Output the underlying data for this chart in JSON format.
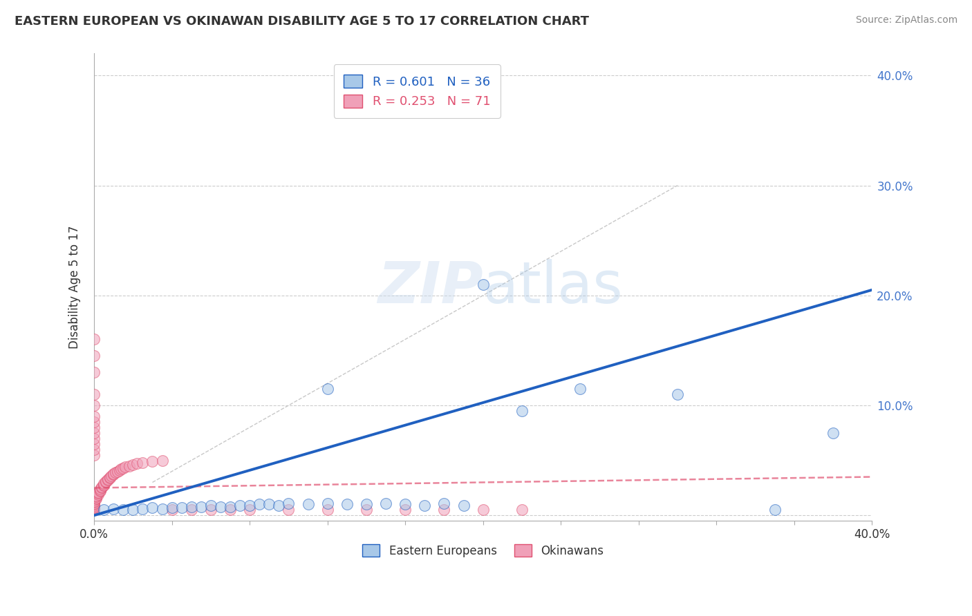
{
  "title": "EASTERN EUROPEAN VS OKINAWAN DISABILITY AGE 5 TO 17 CORRELATION CHART",
  "source": "Source: ZipAtlas.com",
  "ylabel": "Disability Age 5 to 17",
  "xlim": [
    0.0,
    0.4
  ],
  "ylim": [
    -0.005,
    0.42
  ],
  "xticks": [
    0.0,
    0.04,
    0.08,
    0.12,
    0.16,
    0.2,
    0.24,
    0.28,
    0.32,
    0.36,
    0.4
  ],
  "yticks": [
    0.0,
    0.1,
    0.2,
    0.3,
    0.4
  ],
  "xtick_labels": [
    "0.0%",
    "",
    "",
    "",
    "",
    "",
    "",
    "",
    "",
    "",
    "40.0%"
  ],
  "ytick_labels_right": [
    "",
    "10.0%",
    "20.0%",
    "30.0%",
    "40.0%"
  ],
  "grid_color": "#cccccc",
  "background_color": "#ffffff",
  "blue_R": "0.601",
  "blue_N": "36",
  "pink_R": "0.253",
  "pink_N": "71",
  "blue_color": "#a8c8e8",
  "pink_color": "#f0a0b8",
  "blue_line_color": "#2060c0",
  "pink_line_color": "#e05070",
  "blue_trend_x": [
    0.0,
    0.4
  ],
  "blue_trend_y": [
    0.0,
    0.205
  ],
  "pink_trend_x": [
    0.0,
    0.4
  ],
  "pink_trend_y": [
    0.025,
    0.035
  ],
  "diag_color": "#c8c8c8",
  "diag_pink_color": "#f0b8c8",
  "blue_points_x": [
    0.005,
    0.01,
    0.015,
    0.02,
    0.025,
    0.03,
    0.035,
    0.04,
    0.045,
    0.05,
    0.055,
    0.06,
    0.065,
    0.07,
    0.075,
    0.08,
    0.085,
    0.09,
    0.095,
    0.1,
    0.11,
    0.12,
    0.13,
    0.14,
    0.15,
    0.16,
    0.17,
    0.18,
    0.19,
    0.2,
    0.25,
    0.3,
    0.22,
    0.12,
    0.35,
    0.38
  ],
  "blue_points_y": [
    0.005,
    0.006,
    0.005,
    0.005,
    0.006,
    0.007,
    0.006,
    0.007,
    0.007,
    0.008,
    0.008,
    0.009,
    0.008,
    0.008,
    0.009,
    0.009,
    0.01,
    0.01,
    0.009,
    0.011,
    0.01,
    0.011,
    0.01,
    0.01,
    0.011,
    0.01,
    0.009,
    0.011,
    0.009,
    0.21,
    0.115,
    0.11,
    0.095,
    0.115,
    0.005,
    0.075
  ],
  "pink_points_x": [
    0.0,
    0.0,
    0.0,
    0.0,
    0.0,
    0.0,
    0.0,
    0.0,
    0.0,
    0.0,
    0.001,
    0.001,
    0.001,
    0.001,
    0.002,
    0.002,
    0.002,
    0.003,
    0.003,
    0.003,
    0.004,
    0.004,
    0.005,
    0.005,
    0.005,
    0.006,
    0.006,
    0.007,
    0.007,
    0.008,
    0.008,
    0.009,
    0.01,
    0.01,
    0.011,
    0.012,
    0.013,
    0.014,
    0.015,
    0.016,
    0.018,
    0.02,
    0.022,
    0.025,
    0.03,
    0.035,
    0.04,
    0.05,
    0.06,
    0.07,
    0.08,
    0.1,
    0.12,
    0.14,
    0.16,
    0.18,
    0.2,
    0.22,
    0.0,
    0.0,
    0.0,
    0.0,
    0.0,
    0.0,
    0.0,
    0.0,
    0.0,
    0.0,
    0.0,
    0.0,
    0.0
  ],
  "pink_points_y": [
    0.005,
    0.006,
    0.007,
    0.008,
    0.009,
    0.01,
    0.011,
    0.012,
    0.013,
    0.014,
    0.015,
    0.016,
    0.017,
    0.018,
    0.019,
    0.02,
    0.021,
    0.022,
    0.023,
    0.024,
    0.025,
    0.026,
    0.027,
    0.028,
    0.029,
    0.03,
    0.031,
    0.032,
    0.033,
    0.034,
    0.035,
    0.036,
    0.037,
    0.038,
    0.039,
    0.04,
    0.041,
    0.042,
    0.043,
    0.044,
    0.045,
    0.046,
    0.047,
    0.048,
    0.049,
    0.05,
    0.005,
    0.005,
    0.005,
    0.005,
    0.005,
    0.005,
    0.005,
    0.005,
    0.005,
    0.005,
    0.005,
    0.005,
    0.055,
    0.06,
    0.065,
    0.07,
    0.075,
    0.08,
    0.085,
    0.09,
    0.1,
    0.11,
    0.13,
    0.145,
    0.16
  ]
}
